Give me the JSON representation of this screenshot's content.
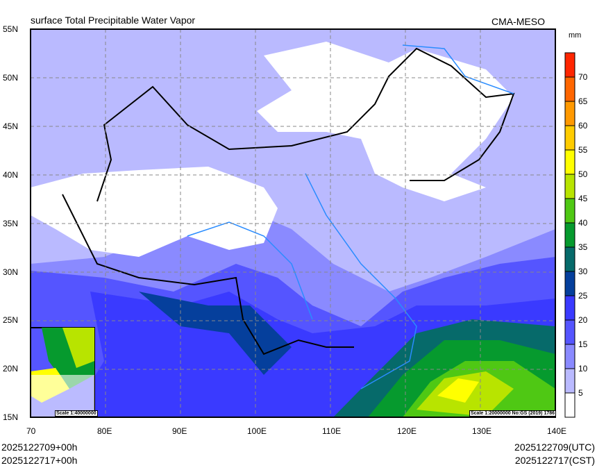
{
  "title": "surface Total Precipitable Water Vapor",
  "model": "CMA-MESO",
  "units": "mm",
  "lat_labels": [
    "55N",
    "50N",
    "45N",
    "40N",
    "35N",
    "30N",
    "25N",
    "20N",
    "15N"
  ],
  "lon_labels": [
    "70",
    "80E",
    "90E",
    "100E",
    "110E",
    "120E",
    "130E",
    "140E"
  ],
  "colorbar": {
    "labels": [
      "70",
      "65",
      "60",
      "55",
      "50",
      "45",
      "40",
      "35",
      "30",
      "25",
      "20",
      "15",
      "10",
      "5"
    ],
    "colors": [
      "#ff2600",
      "#ff6600",
      "#ff9900",
      "#ffcc00",
      "#ffff00",
      "#b8e400",
      "#4fc814",
      "#069a2e",
      "#066a6a",
      "#053f9c",
      "#3a3aff",
      "#5555ff",
      "#8a8aff",
      "#babaff",
      "#ffffff"
    ]
  },
  "scale_main": "Scale 1:20000000 No:GS (2019) 1786",
  "scale_inset": "Scale 1:40000000",
  "footer": {
    "init_local": "2025122709+00h",
    "valid_local": "2025122717+00h",
    "init_utc": "2025122709(UTC)",
    "valid_cst": "2025122717(CST)"
  }
}
